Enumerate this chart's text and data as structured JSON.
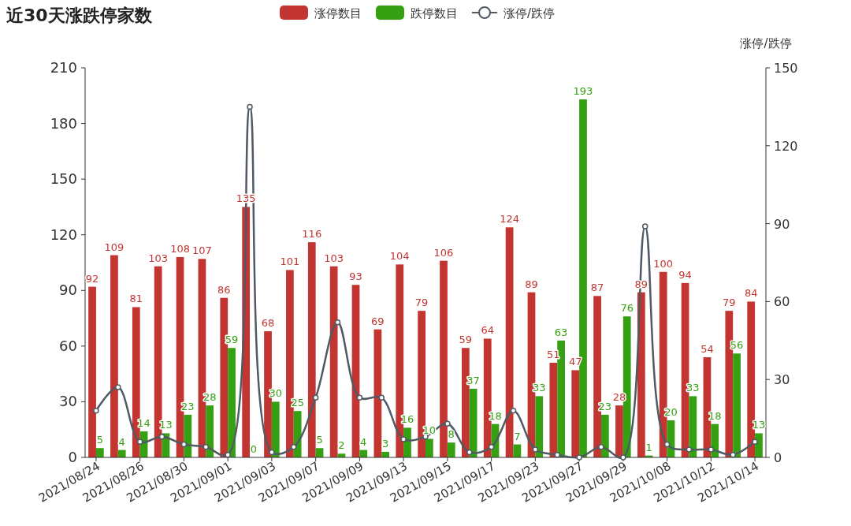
{
  "chart_data": {
    "type": "bar",
    "title": "近30天涨跌停家数",
    "categories": [
      "2021/08/24",
      null,
      "2021/08/26",
      null,
      "2021/08/30",
      null,
      "2021/09/01",
      null,
      "2021/09/03",
      null,
      "2021/09/07",
      null,
      "2021/09/09",
      null,
      "2021/09/13",
      null,
      "2021/09/15",
      null,
      "2021/09/17",
      null,
      "2021/09/23",
      null,
      "2021/09/27",
      null,
      "2021/09/29",
      null,
      "2021/10/08",
      null,
      "2021/10/12",
      null,
      "2021/10/14"
    ],
    "series": [
      {
        "name": "涨停数目",
        "color": "#c23531",
        "values": [
          92,
          109,
          81,
          103,
          108,
          107,
          86,
          135,
          68,
          101,
          116,
          103,
          93,
          69,
          104,
          79,
          106,
          59,
          64,
          124,
          89,
          51,
          47,
          87,
          28,
          89,
          100,
          94,
          54,
          79,
          84
        ],
        "value_labels": [
          "92",
          "109",
          "81",
          "103",
          "108",
          "107",
          "86",
          "135",
          "68",
          "101",
          "116",
          "103",
          "93",
          "69",
          "104",
          "79",
          "106",
          "59",
          "64",
          "124",
          "89",
          "51",
          "47",
          "87",
          "28",
          "89",
          "100",
          "94",
          "54",
          "79",
          "84"
        ]
      },
      {
        "name": "跌停数目",
        "color": "#34a012",
        "values": [
          5,
          4,
          14,
          13,
          23,
          28,
          59,
          0,
          30,
          25,
          5,
          2,
          4,
          3,
          16,
          10,
          8,
          37,
          18,
          7,
          33,
          63,
          193,
          23,
          76,
          1,
          20,
          33,
          18,
          56,
          13
        ],
        "value_labels": [
          "5",
          "4",
          "14",
          "13",
          "23",
          "28",
          "59",
          "0",
          "30",
          "25",
          "5",
          "2",
          "4",
          "3",
          "16",
          "10",
          "8",
          "37",
          "18",
          "7",
          "33",
          "63",
          "193",
          "23",
          "76",
          "1",
          "20",
          "33",
          "18",
          "56",
          "13"
        ]
      },
      {
        "name": "涨停/跌停",
        "type": "line",
        "axis": "y2",
        "color": "#505a64",
        "marker": "circle",
        "values": [
          18,
          27,
          6,
          8,
          5,
          4,
          1,
          135,
          2,
          4,
          23,
          52,
          23,
          23,
          7,
          8,
          13,
          2,
          4,
          18,
          3,
          1,
          0,
          4,
          0,
          89,
          5,
          3,
          3,
          1,
          6
        ]
      }
    ],
    "y2label": "涨停/跌停",
    "ylim": [
      0,
      210
    ],
    "yticks": [
      0,
      30,
      60,
      90,
      120,
      150,
      180,
      210
    ],
    "y2lim": [
      0,
      150
    ],
    "y2ticks": [
      0,
      30,
      60,
      90,
      120,
      150
    ],
    "legend": "top",
    "grid": false
  }
}
